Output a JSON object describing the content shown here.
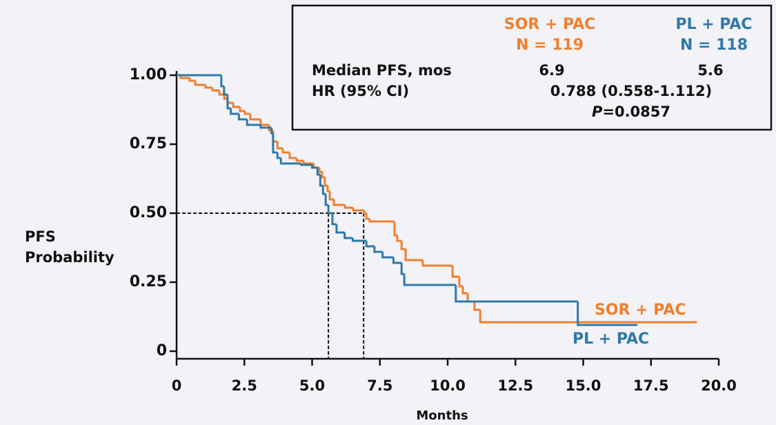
{
  "chart_data": {
    "type": "step",
    "x_label": "Months",
    "y_label": "PFS Probability",
    "xlim": [
      0,
      20
    ],
    "ylim": [
      0,
      1
    ],
    "xticks": [
      0,
      2.5,
      {
        "value": 5,
        "label": "5.0"
      },
      7.5,
      {
        "value": 10,
        "label": "10.0"
      },
      12.5,
      {
        "value": 15,
        "label": "15.0"
      },
      17.5,
      {
        "value": 20,
        "label": "20.0"
      }
    ],
    "yticks": [
      {
        "value": 1,
        "label": "1.00"
      },
      {
        "value": 0.75,
        "label": "0.75"
      },
      {
        "value": 0.5,
        "label": "0.50"
      },
      {
        "value": 0.25,
        "label": "0.25"
      },
      0
    ],
    "series": [
      {
        "name": "SOR + PAC",
        "color": "#f07f2c",
        "n": "N = 119",
        "median": 6.9,
        "x": [
          0,
          0.15,
          0.48,
          0.69,
          1.07,
          1.32,
          1.58,
          1.76,
          1.88,
          2.09,
          2.34,
          2.52,
          2.72,
          3.1,
          3.41,
          3.56,
          3.72,
          3.92,
          4.17,
          4.43,
          4.68,
          5.06,
          5.27,
          5.37,
          5.47,
          5.57,
          5.65,
          5.8,
          6.21,
          6.51,
          6.92,
          7.0,
          7.12,
          8.04,
          8.14,
          8.3,
          8.45,
          9.08,
          10.18,
          10.43,
          10.56,
          10.74,
          10.99,
          11.2,
          19.2
        ],
        "values": [
          1,
          0.99,
          0.98,
          0.965,
          0.955,
          0.945,
          0.93,
          0.915,
          0.9,
          0.885,
          0.87,
          0.86,
          0.84,
          0.82,
          0.8,
          0.76,
          0.735,
          0.72,
          0.7,
          0.69,
          0.68,
          0.665,
          0.65,
          0.63,
          0.6,
          0.58,
          0.55,
          0.53,
          0.52,
          0.51,
          0.5,
          0.48,
          0.47,
          0.42,
          0.4,
          0.37,
          0.33,
          0.31,
          0.27,
          0.235,
          0.21,
          0.18,
          0.15,
          0.105,
          0.105
        ]
      },
      {
        "name": "PL + PAC",
        "color": "#2e79a8",
        "n": "N = 118",
        "median": 5.6,
        "x": [
          0,
          1.65,
          1.75,
          1.88,
          2.0,
          2.3,
          2.6,
          3.1,
          3.5,
          3.56,
          3.72,
          3.85,
          4.6,
          5.0,
          5.2,
          5.3,
          5.4,
          5.5,
          5.6,
          5.75,
          5.9,
          6.2,
          6.5,
          7.0,
          7.3,
          7.6,
          8.0,
          8.3,
          8.4,
          10.3,
          14.8,
          17.0
        ],
        "values": [
          1,
          0.96,
          0.93,
          0.88,
          0.86,
          0.84,
          0.82,
          0.81,
          0.79,
          0.72,
          0.7,
          0.68,
          0.675,
          0.665,
          0.64,
          0.6,
          0.57,
          0.53,
          0.5,
          0.46,
          0.43,
          0.41,
          0.4,
          0.38,
          0.36,
          0.34,
          0.32,
          0.28,
          0.24,
          0.18,
          0.095,
          0.095
        ]
      }
    ],
    "summary": {
      "median_label": "Median PFS, mos",
      "hr_label": "HR (95% CI)",
      "hr": "0.788 (0.558-1.112)",
      "p_prefix": "P",
      "p_value": "=0.0857"
    }
  }
}
